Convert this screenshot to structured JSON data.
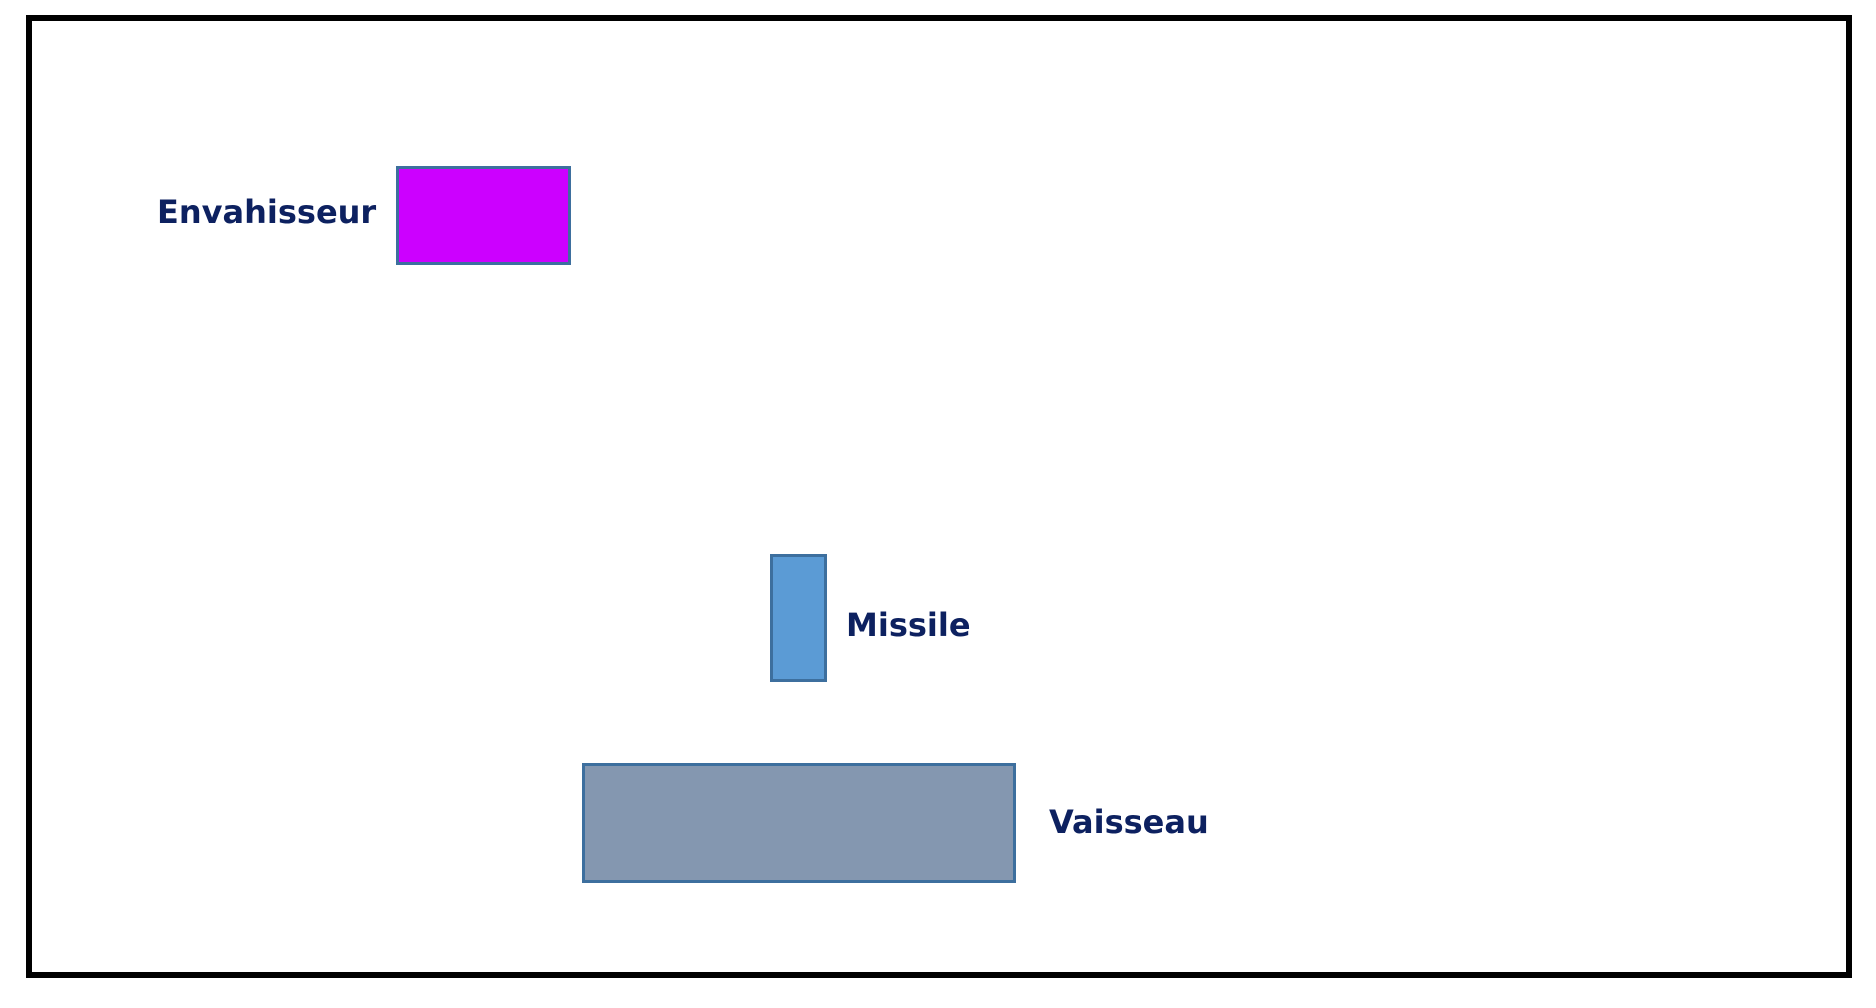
{
  "labels": {
    "invader": "Envahisseur",
    "missile": "Missile",
    "ship": "Vaisseau"
  },
  "colors": {
    "frame_border": "#000000",
    "invader_fill": "#cc00ff",
    "missile_fill": "#5b9bd5",
    "ship_fill": "#8497b0",
    "shape_border": "#3d6f9e",
    "label_text": "#0d2160"
  }
}
